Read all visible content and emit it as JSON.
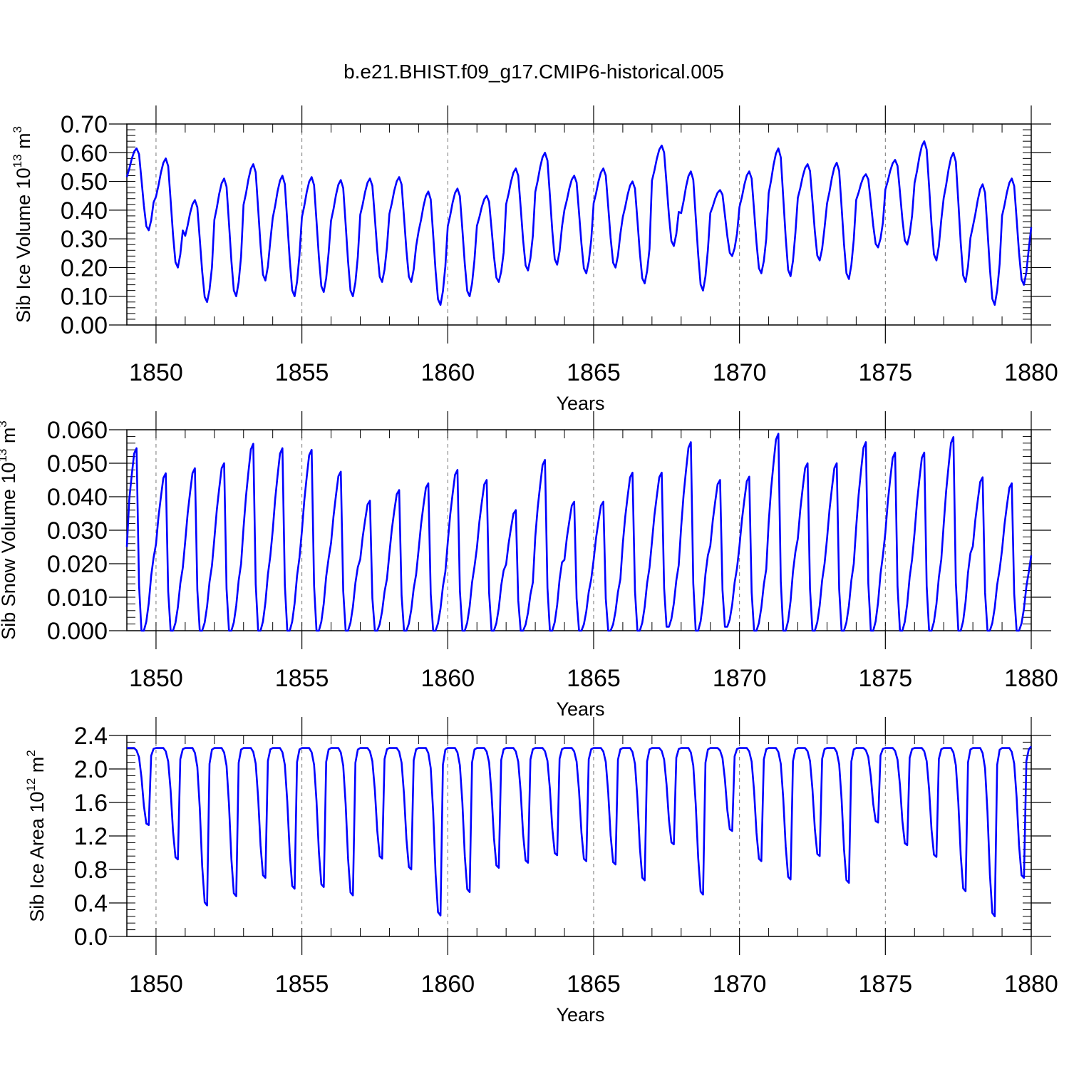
{
  "title": "b.e21.BHIST.f09_g17.CMIP6-historical.005",
  "colors": {
    "series": "#0000ff",
    "axes": "#000000",
    "grid": "#777777"
  },
  "chart_data": [
    {
      "type": "line",
      "name": "Sib Ice Volume",
      "ylabel": {
        "text": "Sib Ice Volume 10",
        "exponent": "13",
        "unit": " m",
        "unit_exponent": "3"
      },
      "xlabel": "Years",
      "xlim": [
        1849,
        1880
      ],
      "ylim": [
        0.0,
        0.7
      ],
      "xticks": [
        1850,
        1855,
        1860,
        1865,
        1870,
        1875,
        1880
      ],
      "xtick_labels": [
        "1850",
        "1855",
        "1860",
        "1865",
        "1870",
        "1875",
        "1880"
      ],
      "yticks": [
        0.0,
        0.1,
        0.2,
        0.3,
        0.4,
        0.5,
        0.6,
        0.7
      ],
      "ytick_labels": [
        "0.00",
        "0.10",
        "0.20",
        "0.30",
        "0.40",
        "0.50",
        "0.60",
        "0.70"
      ],
      "minimum_level": 0.08,
      "x_start": 1849.0,
      "x_step": 0.0833333,
      "yearly_max": [
        0.615,
        0.58,
        0.435,
        0.51,
        0.56,
        0.52,
        0.515,
        0.505,
        0.51,
        0.515,
        0.465,
        0.475,
        0.45,
        0.545,
        0.6,
        0.52,
        0.545,
        0.5,
        0.625,
        0.535,
        0.47,
        0.535,
        0.615,
        0.56,
        0.565,
        0.525,
        0.575,
        0.64,
        0.6,
        0.49,
        0.51
      ],
      "yearly_min": [
        0.33,
        0.2,
        0.08,
        0.1,
        0.155,
        0.1,
        0.115,
        0.1,
        0.15,
        0.15,
        0.07,
        0.1,
        0.15,
        0.19,
        0.21,
        0.18,
        0.2,
        0.145,
        0.275,
        0.12,
        0.24,
        0.18,
        0.17,
        0.225,
        0.16,
        0.27,
        0.28,
        0.225,
        0.15,
        0.07,
        0.14
      ],
      "end_value": 0.34
    },
    {
      "type": "line",
      "name": "Sib Snow Volume",
      "ylabel": {
        "text": "Sib Snow Volume 10",
        "exponent": "13",
        "unit": " m",
        "unit_exponent": "3"
      },
      "xlabel": "Years",
      "xlim": [
        1849,
        1880
      ],
      "ylim": [
        0.0,
        0.06
      ],
      "xticks": [
        1850,
        1855,
        1860,
        1865,
        1870,
        1875,
        1880
      ],
      "xtick_labels": [
        "1850",
        "1855",
        "1860",
        "1865",
        "1870",
        "1875",
        "1880"
      ],
      "yticks": [
        0.0,
        0.01,
        0.02,
        0.03,
        0.04,
        0.05,
        0.06
      ],
      "ytick_labels": [
        "0.000",
        "0.010",
        "0.020",
        "0.030",
        "0.040",
        "0.050",
        "0.060"
      ],
      "x_start": 1849.0,
      "x_step": 0.0833333,
      "yearly_max": [
        0.0545,
        0.047,
        0.0485,
        0.05,
        0.0558,
        0.0545,
        0.054,
        0.0475,
        0.0388,
        0.042,
        0.044,
        0.048,
        0.045,
        0.036,
        0.051,
        0.0385,
        0.0385,
        0.0472,
        0.0472,
        0.0563,
        0.045,
        0.046,
        0.0588,
        0.05,
        0.05,
        0.0563,
        0.0532,
        0.0532,
        0.0578,
        0.0458,
        0.044
      ],
      "yearly_min": [
        0.0,
        0.0,
        0.0,
        0.0,
        0.0,
        0.0,
        0.0,
        0.0,
        0.0,
        0.0,
        0.0,
        0.0,
        0.0,
        0.0,
        0.0,
        0.0,
        0.0,
        0.0,
        0.0012,
        0.0,
        0.0012,
        0.0,
        0.0,
        0.0,
        0.0,
        0.0,
        0.0,
        0.0,
        0.0,
        0.0,
        0.0
      ],
      "start_value": 0.025,
      "end_value": 0.0225
    },
    {
      "type": "line",
      "name": "Sib Ice Area",
      "ylabel": {
        "text": "Sib Ice Area 10",
        "exponent": "12",
        "unit": " m",
        "unit_exponent": "2"
      },
      "xlabel": "Years",
      "xlim": [
        1849,
        1880
      ],
      "ylim": [
        0.0,
        2.4
      ],
      "xticks": [
        1850,
        1855,
        1860,
        1865,
        1870,
        1875,
        1880
      ],
      "xtick_labels": [
        "1850",
        "1855",
        "1860",
        "1865",
        "1870",
        "1875",
        "1880"
      ],
      "yticks": [
        0.0,
        0.4,
        0.8,
        1.2,
        1.6,
        2.0,
        2.4
      ],
      "ytick_labels": [
        "0.0",
        "0.4",
        "0.8",
        "1.2",
        "1.6",
        "2.0",
        "2.4"
      ],
      "x_start": 1849.0,
      "x_step": 0.0833333,
      "plateau": 2.25,
      "yearly_min": [
        1.33,
        0.92,
        0.37,
        0.48,
        0.7,
        0.57,
        0.59,
        0.49,
        0.93,
        0.8,
        0.25,
        0.53,
        0.82,
        0.88,
        0.97,
        0.9,
        0.86,
        0.67,
        1.1,
        0.5,
        1.26,
        0.9,
        0.68,
        0.96,
        0.64,
        1.36,
        1.09,
        0.95,
        0.54,
        0.24,
        0.7
      ],
      "end_value": 2.27
    }
  ]
}
